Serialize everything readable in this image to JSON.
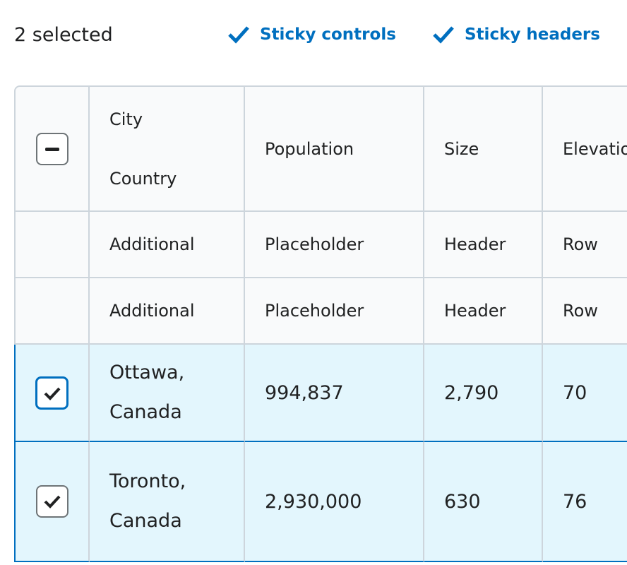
{
  "controls": {
    "selection": "2 selected",
    "buttons": [
      "Sticky controls",
      "Sticky headers"
    ]
  },
  "table": {
    "header": {
      "city": "City",
      "country": "Country",
      "columns": [
        "Population",
        "Size",
        "Elevation"
      ]
    },
    "extra_header_rows": [
      [
        "Additional",
        "Placeholder",
        "Header",
        "Row"
      ],
      [
        "Additional",
        "Placeholder",
        "Header",
        "Row"
      ]
    ],
    "rows": [
      [
        "Ottawa, Canada",
        "994,837",
        "2,790",
        "70"
      ],
      [
        "Toronto, Canada",
        "2,930,000",
        "630",
        "76"
      ]
    ]
  }
}
